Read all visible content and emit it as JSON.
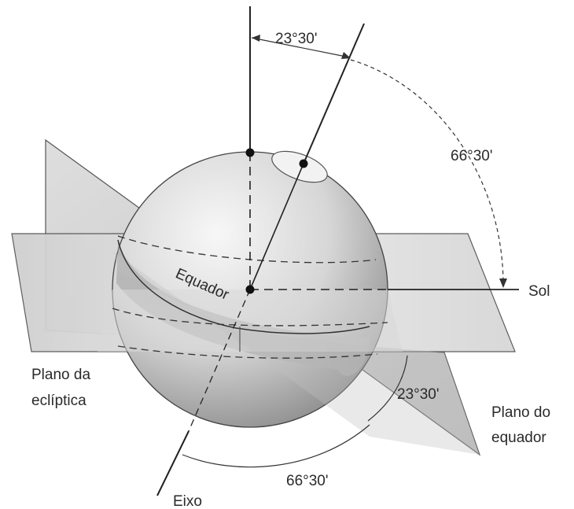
{
  "labels": {
    "top_angle": "23°30'",
    "arc_angle_upper": "66°30'",
    "sun": "Sol",
    "equator": "Equador",
    "ecliptic_plane": [
      "Plano da",
      "eclíptica"
    ],
    "equator_plane": [
      "Plano do",
      "equador"
    ],
    "lower_angle": "23°30'",
    "bottom_angle": "66°30'",
    "axis": "Eixo"
  }
}
